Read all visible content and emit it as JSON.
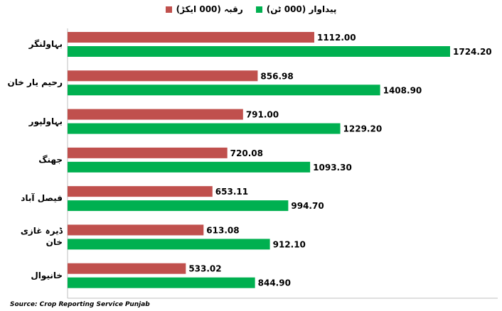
{
  "chart_data": {
    "type": "bar",
    "orientation": "horizontal",
    "categories": [
      "بہاولنگر",
      "رحیم یار خان",
      "بہاولپور",
      "جھنگ",
      "فیصل آباد",
      "ڈیرہ غازی خان",
      "خانیوال"
    ],
    "series": [
      {
        "name": "رقبہ (000 ایکڑ)",
        "color": "#c0504d",
        "values": [
          1112,
          856.98,
          791,
          720.08,
          653.11,
          613.08,
          533.02
        ],
        "value_labels": [
          "1112.00",
          "856.98",
          "791.00",
          "720.08",
          "653.11",
          "613.08",
          "533.02"
        ]
      },
      {
        "name": "پیداوار (000 ٹن)",
        "color": "#00b050",
        "values": [
          1724.2,
          1408.9,
          1229.2,
          1093.3,
          994.7,
          912.1,
          844.9
        ],
        "value_labels": [
          "1724.20",
          "1408.90",
          "1229.20",
          "1093.30",
          "994.70",
          "912.10",
          "844.90"
        ]
      }
    ],
    "source": "Source: Crop Reporting Service Punjab"
  }
}
